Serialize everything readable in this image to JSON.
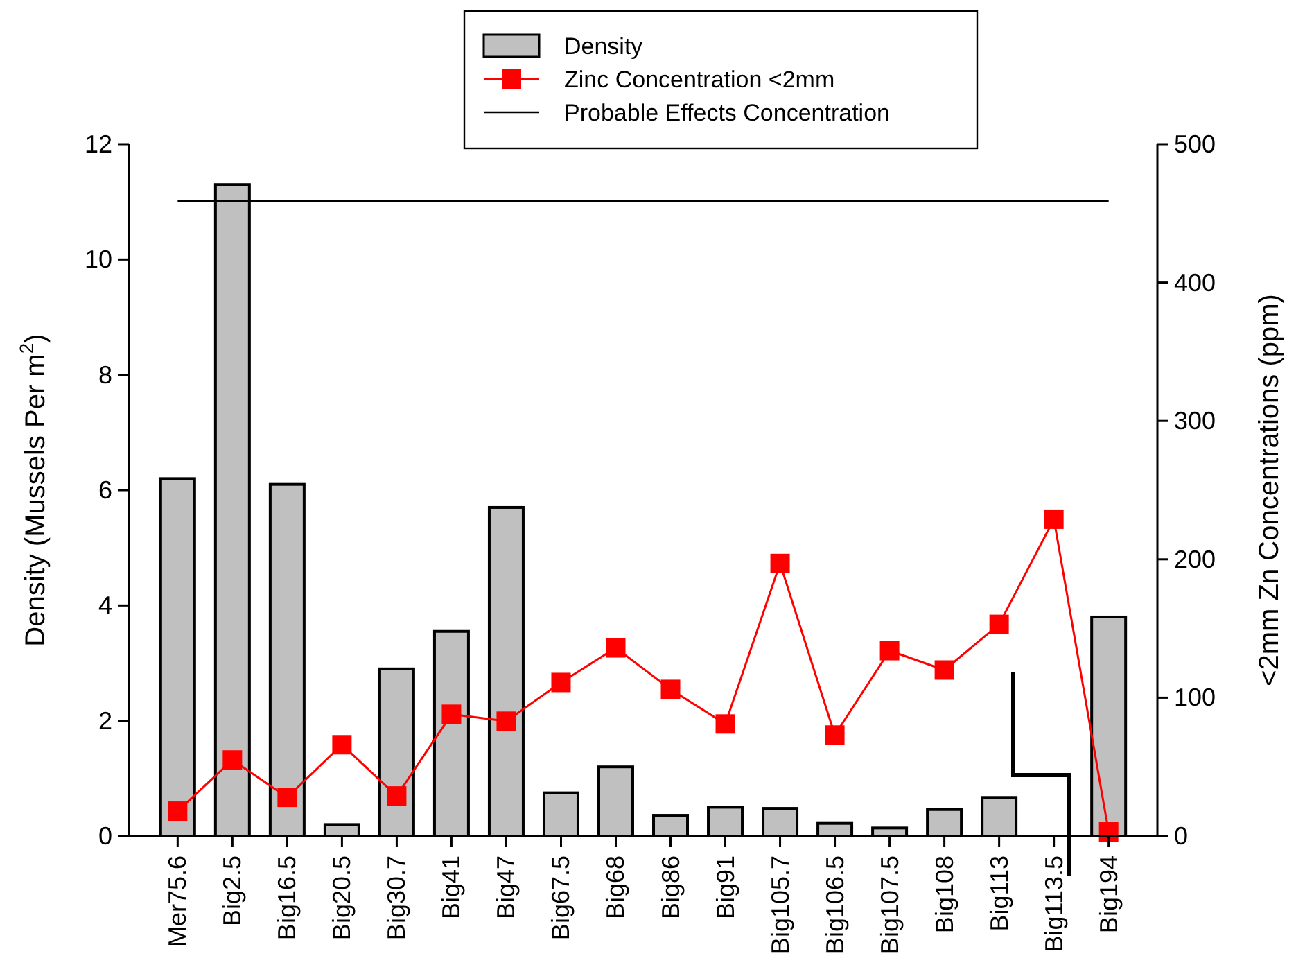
{
  "chart_data": {
    "type": "bar",
    "categories": [
      "Mer75.6",
      "Big2.5",
      "Big16.5",
      "Big20.5",
      "Big30.7",
      "Big41",
      "Big47",
      "Big67.5",
      "Big68",
      "Big86",
      "Big91",
      "Big105.7",
      "Big106.5",
      "Big107.5",
      "Big108",
      "Big113",
      "Big113.5",
      "Big194"
    ],
    "series": [
      {
        "name": "Density",
        "color": "#c0c0c0",
        "values": [
          6.2,
          11.3,
          6.1,
          0.2,
          2.9,
          3.55,
          5.7,
          0.75,
          1.2,
          0.36,
          0.5,
          0.48,
          0.22,
          0.14,
          0.46,
          0.67,
          null,
          3.8
        ]
      },
      {
        "name": "Zinc Concentration <2mm",
        "type": "line",
        "axis": "y2",
        "color": "#ff0000",
        "marker": "square",
        "values": [
          18,
          55,
          28,
          66,
          29,
          88,
          83,
          111,
          136,
          106,
          81,
          197,
          73,
          134,
          120,
          153,
          229,
          3
        ]
      }
    ],
    "ref_lines": [
      {
        "axis": "y2",
        "value": 459,
        "label": "Probable Effects Concentration",
        "color": "#000000"
      }
    ],
    "ylabel": "Density (Mussels Per m$^{2}$)",
    "y2label": "<2mm Zn Concentrations (ppm)",
    "ylim": [
      0,
      12
    ],
    "yticks": [
      0,
      2,
      4,
      6,
      8,
      10,
      12
    ],
    "y2lim": [
      0,
      500
    ],
    "y2ticks": [
      0,
      100,
      200,
      300,
      400,
      500
    ],
    "legend": "top",
    "grid": false
  }
}
